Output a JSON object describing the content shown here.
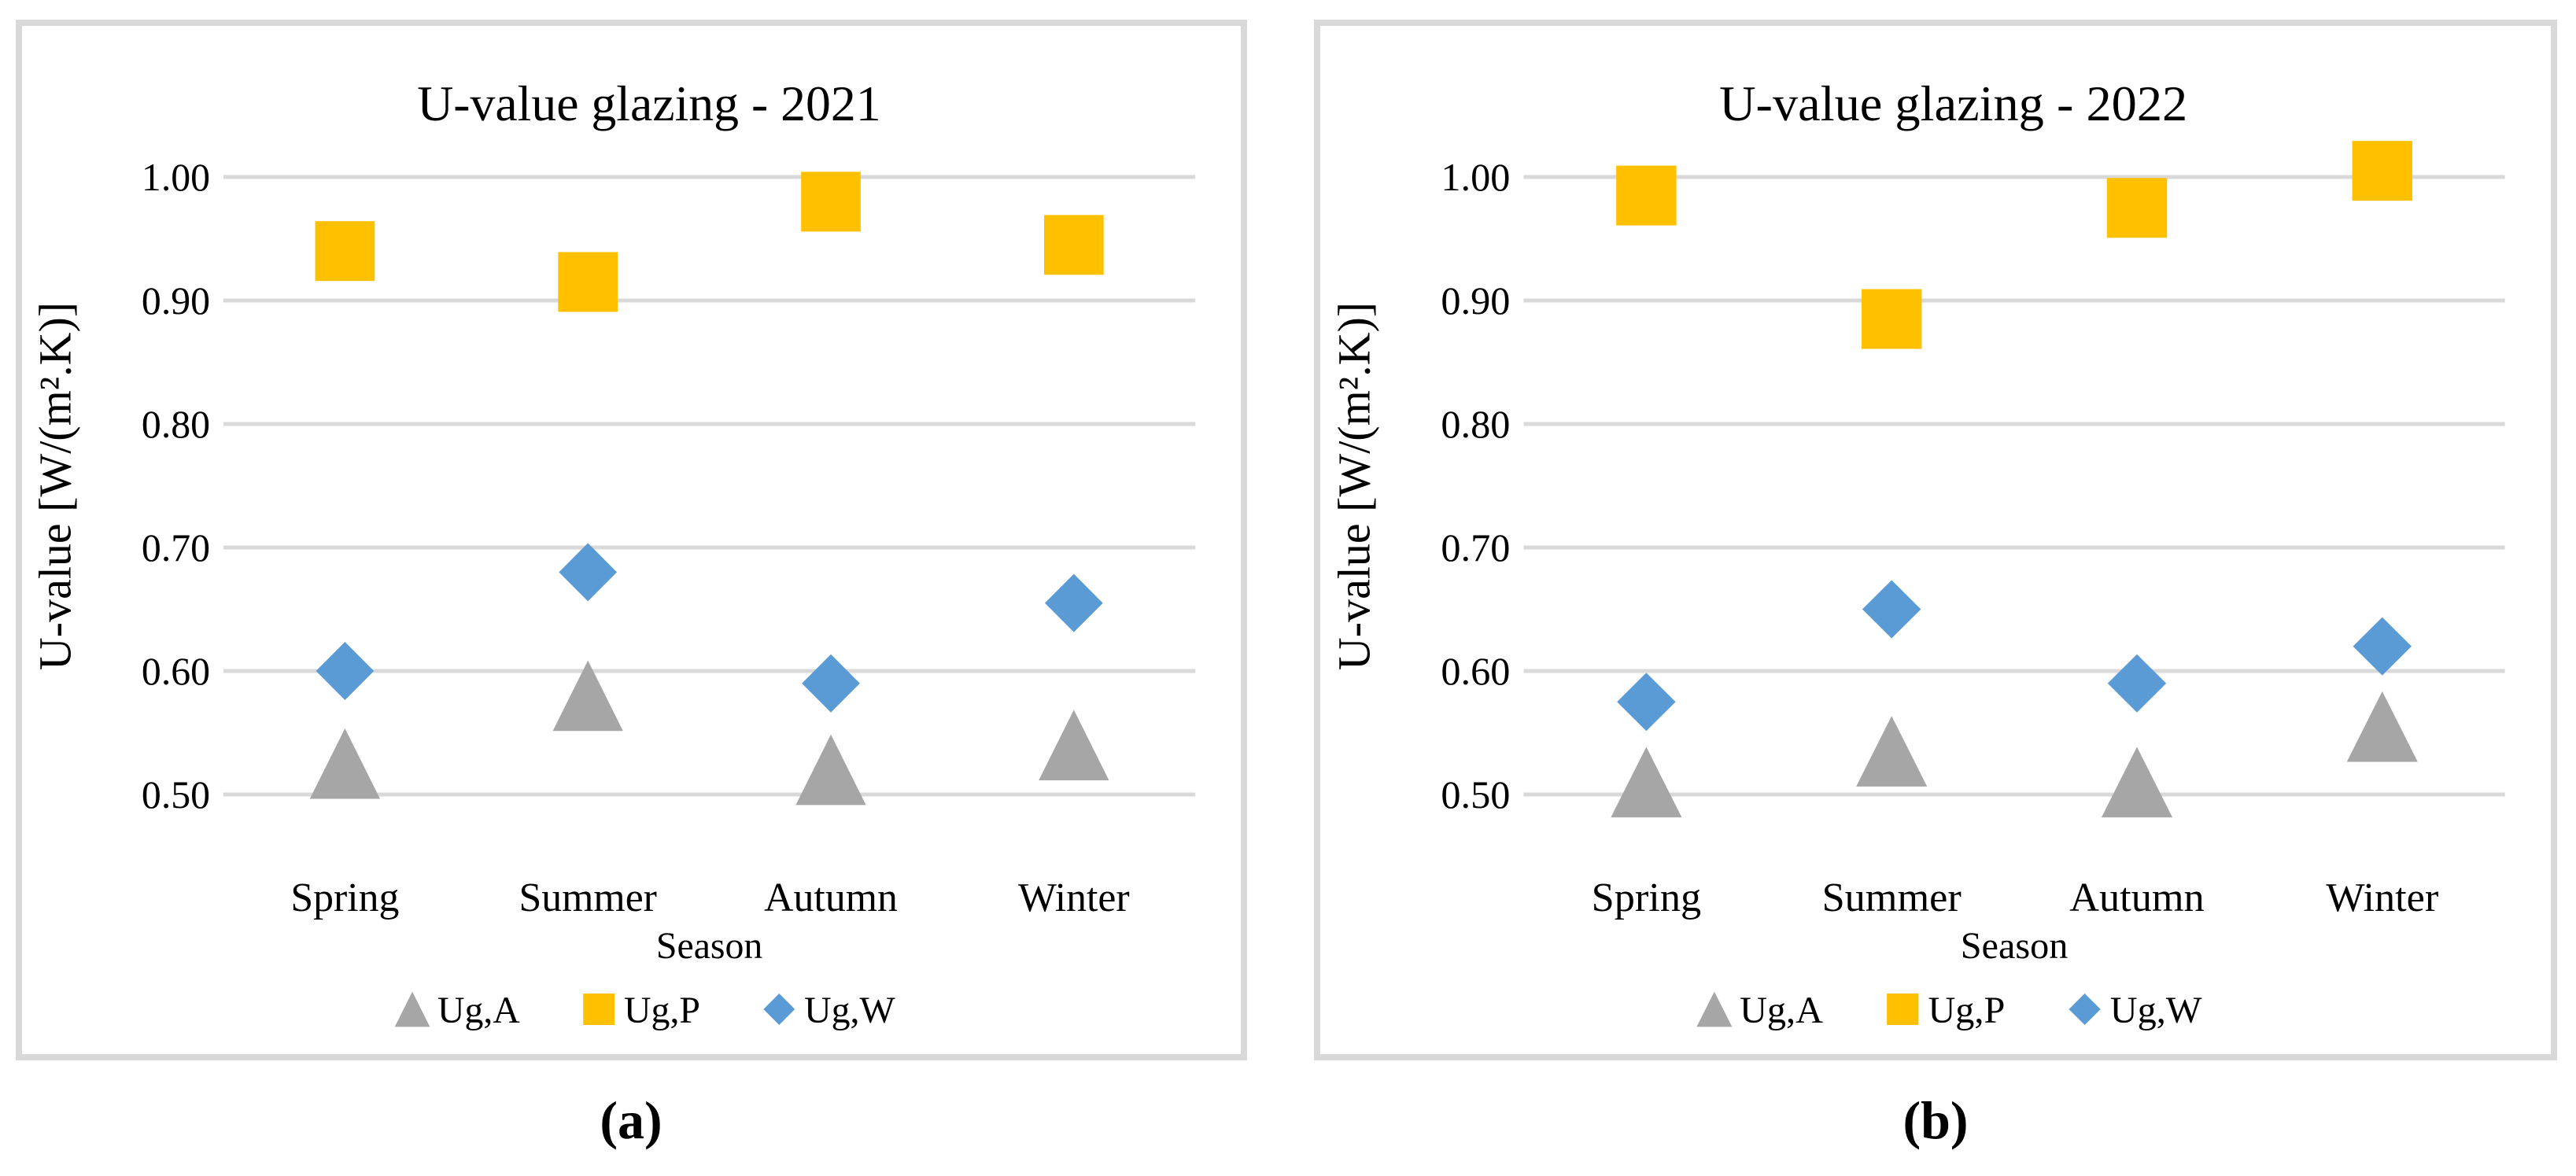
{
  "figure": {
    "captions": [
      {
        "label": "(a)"
      },
      {
        "label": "(b)"
      }
    ]
  },
  "colors": {
    "panel_border": "#D9D9D9",
    "gridline": "#D9D9D9",
    "text": "#000000",
    "series_gray": "#A6A6A6",
    "series_yellow": "#FFC000",
    "series_blue": "#5B9BD5"
  },
  "chart_data": [
    {
      "type": "scatter",
      "title": "U-value glazing - 2021",
      "xlabel": "Season",
      "ylabel": "U-value [W/(m².K)]",
      "categories": [
        "Spring",
        "Summer",
        "Autumn",
        "Winter"
      ],
      "ylim": [
        0.47,
        1.05
      ],
      "ytick_values": [
        1.0,
        0.9,
        0.8,
        0.7,
        0.6,
        0.5
      ],
      "ytick_labels": [
        "1.00",
        "0.90",
        "0.80",
        "0.70",
        "0.60",
        "0.50"
      ],
      "grid": true,
      "legend_position": "bottom",
      "series": [
        {
          "name": "Ug,A",
          "marker": "triangle",
          "color": "#A6A6A6",
          "values": [
            0.525,
            0.58,
            0.52,
            0.54
          ]
        },
        {
          "name": "Ug,P",
          "marker": "square",
          "color": "#FFC000",
          "values": [
            0.94,
            0.915,
            0.98,
            0.945
          ]
        },
        {
          "name": "Ug,W",
          "marker": "diamond",
          "color": "#5B9BD5",
          "values": [
            0.6,
            0.68,
            0.59,
            0.655
          ]
        }
      ]
    },
    {
      "type": "scatter",
      "title": "U-value glazing - 2022",
      "xlabel": "Season",
      "ylabel": "U-value [W/(m².K)]",
      "categories": [
        "Spring",
        "Summer",
        "Autumn",
        "Winter"
      ],
      "ylim": [
        0.47,
        1.05
      ],
      "ytick_values": [
        1.0,
        0.9,
        0.8,
        0.7,
        0.6,
        0.5
      ],
      "ytick_labels": [
        "1.00",
        "0.90",
        "0.80",
        "0.70",
        "0.60",
        "0.50"
      ],
      "grid": true,
      "legend_position": "bottom",
      "series": [
        {
          "name": "Ug,A",
          "marker": "triangle",
          "color": "#A6A6A6",
          "values": [
            0.51,
            0.535,
            0.51,
            0.555
          ]
        },
        {
          "name": "Ug,P",
          "marker": "square",
          "color": "#FFC000",
          "values": [
            0.985,
            0.885,
            0.975,
            1.005
          ]
        },
        {
          "name": "Ug,W",
          "marker": "diamond",
          "color": "#5B9BD5",
          "values": [
            0.575,
            0.65,
            0.59,
            0.62
          ]
        }
      ]
    }
  ]
}
